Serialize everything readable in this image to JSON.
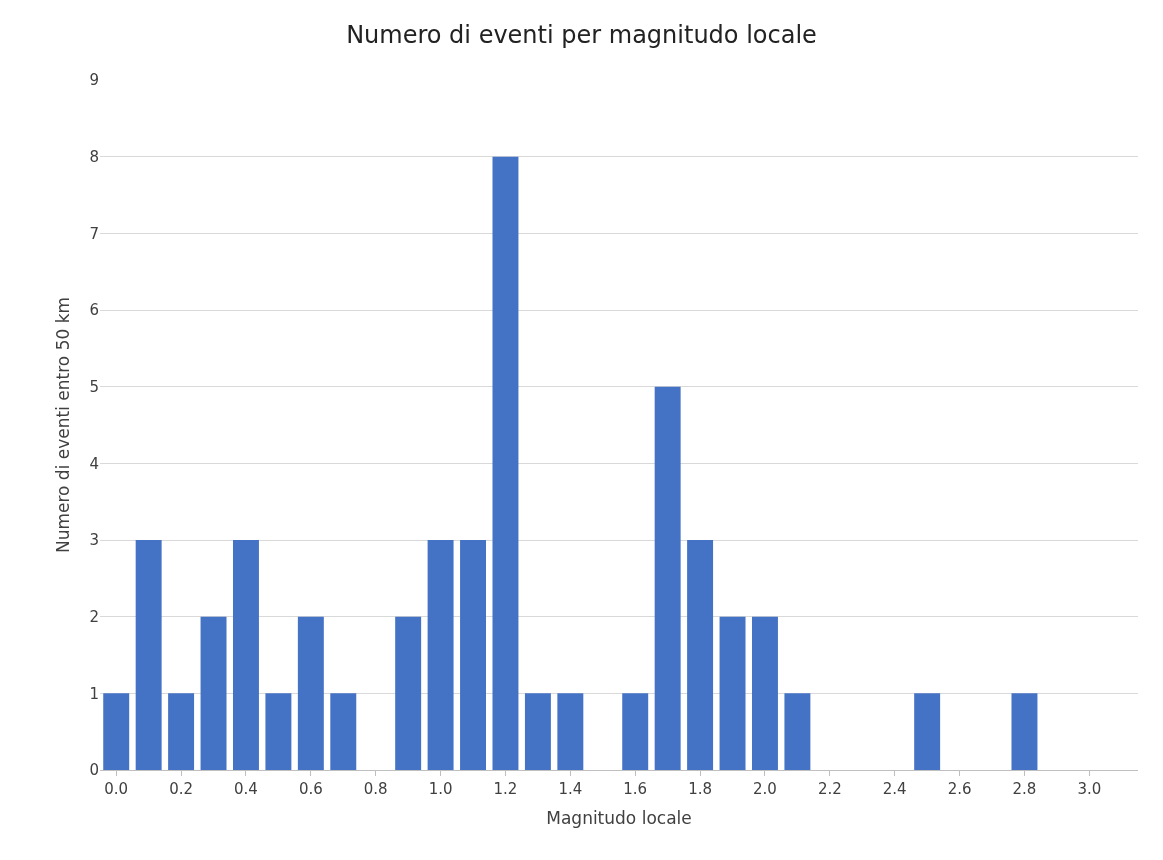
{
  "chart_data": {
    "type": "bar",
    "title": "Numero di eventi per magnitudo locale",
    "xlabel": "Magnitudo locale",
    "ylabel": "Numero di eventi entro 50 km",
    "categories": [
      "0.0",
      null,
      "0.2",
      null,
      "0.4",
      null,
      "0.6",
      null,
      "0.8",
      null,
      "1.0",
      null,
      "1.2",
      null,
      "1.4",
      null,
      "1.6",
      null,
      "1.8",
      null,
      "2.0",
      null,
      "2.2",
      null,
      "2.4",
      null,
      "2.6",
      null,
      "2.8",
      null,
      "3.0",
      null
    ],
    "values": [
      1,
      3,
      1,
      2,
      3,
      1,
      2,
      1,
      0,
      2,
      3,
      3,
      8,
      1,
      1,
      0,
      1,
      5,
      3,
      2,
      2,
      1,
      0,
      0,
      0,
      1,
      0,
      0,
      1,
      0,
      0,
      0
    ],
    "color": "#4472c4",
    "ylim": [
      0,
      9
    ],
    "yticks": [
      0,
      1,
      2,
      3,
      4,
      5,
      6,
      7,
      8,
      9
    ],
    "grid": "y",
    "legend": false
  }
}
